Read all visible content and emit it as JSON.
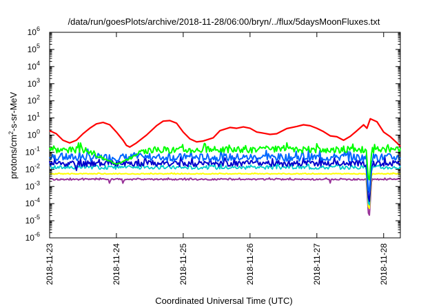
{
  "chart_data": {
    "type": "line",
    "title": "/data/run/goesPlots/archive/2018-11-28/06:00/bryn/../flux/5daysMoonFluxes.txt",
    "xlabel": "Coordinated Universal Time (UTC)",
    "ylabel": "protons/cm2-s-sr-MeV",
    "ylabel_main": "protons/cm",
    "ylabel_sup": "2",
    "ylabel_rest": "-s-sr-MeV",
    "yscale": "log",
    "ylim": [
      1e-06,
      1000000.0
    ],
    "xlim": [
      0,
      5.25
    ],
    "x_unit": "days since 2018-11-23 00:00 UTC",
    "grid": false,
    "legend": "none",
    "x_ticks": [
      {
        "x": 0,
        "label": "2018-11-23"
      },
      {
        "x": 1,
        "label": "2018-11-24"
      },
      {
        "x": 2,
        "label": "2018-11-25"
      },
      {
        "x": 3,
        "label": "2018-11-26"
      },
      {
        "x": 4,
        "label": "2018-11-27"
      },
      {
        "x": 5,
        "label": "2018-11-28"
      }
    ],
    "y_ticks": [
      {
        "v": 1e-06,
        "base": "10",
        "exp": "-6"
      },
      {
        "v": 1e-05,
        "base": "10",
        "exp": "-5"
      },
      {
        "v": 0.0001,
        "base": "10",
        "exp": "-4"
      },
      {
        "v": 0.001,
        "base": "10",
        "exp": "-3"
      },
      {
        "v": 0.01,
        "base": "10",
        "exp": "-2"
      },
      {
        "v": 0.1,
        "base": "10",
        "exp": "-1"
      },
      {
        "v": 1,
        "base": "10",
        "exp": "0"
      },
      {
        "v": 10,
        "base": "10",
        "exp": "1"
      },
      {
        "v": 100,
        "base": "10",
        "exp": "2"
      },
      {
        "v": 1000,
        "base": "10",
        "exp": "3"
      },
      {
        "v": 10000,
        "base": "10",
        "exp": "4"
      },
      {
        "v": 100000,
        "base": "10",
        "exp": "5"
      },
      {
        "v": 1000000,
        "base": "10",
        "exp": "6"
      }
    ],
    "series": [
      {
        "name": "red",
        "color": "#ff0000",
        "width": 2.2,
        "points": [
          [
            0,
            1.8
          ],
          [
            0.1,
            1.2
          ],
          [
            0.2,
            0.5
          ],
          [
            0.3,
            0.35
          ],
          [
            0.4,
            0.5
          ],
          [
            0.5,
            1.2
          ],
          [
            0.6,
            2.5
          ],
          [
            0.7,
            4.5
          ],
          [
            0.8,
            5.5
          ],
          [
            0.9,
            4
          ],
          [
            1.0,
            1.5
          ],
          [
            1.1,
            0.5
          ],
          [
            1.15,
            0.25
          ],
          [
            1.2,
            0.2
          ],
          [
            1.3,
            0.35
          ],
          [
            1.45,
            1
          ],
          [
            1.6,
            3.5
          ],
          [
            1.7,
            6.5
          ],
          [
            1.8,
            7
          ],
          [
            1.9,
            5
          ],
          [
            2.0,
            1.5
          ],
          [
            2.1,
            0.6
          ],
          [
            2.2,
            0.4
          ],
          [
            2.3,
            0.45
          ],
          [
            2.45,
            0.7
          ],
          [
            2.55,
            1.8
          ],
          [
            2.7,
            2.8
          ],
          [
            2.8,
            2.5
          ],
          [
            2.9,
            3
          ],
          [
            3.0,
            2.5
          ],
          [
            3.1,
            1.5
          ],
          [
            3.2,
            1.3
          ],
          [
            3.3,
            1.1
          ],
          [
            3.4,
            1.2
          ],
          [
            3.55,
            2.4
          ],
          [
            3.7,
            3.2
          ],
          [
            3.8,
            4
          ],
          [
            3.9,
            3.5
          ],
          [
            4.0,
            2.5
          ],
          [
            4.1,
            1.6
          ],
          [
            4.2,
            0.9
          ],
          [
            4.3,
            0.8
          ],
          [
            4.4,
            0.5
          ],
          [
            4.5,
            0.85
          ],
          [
            4.6,
            1.8
          ],
          [
            4.7,
            4
          ],
          [
            4.75,
            2.5
          ],
          [
            4.8,
            9
          ],
          [
            4.9,
            6
          ],
          [
            5.0,
            1.5
          ],
          [
            5.1,
            0.8
          ],
          [
            5.2,
            0.35
          ],
          [
            5.25,
            0.22
          ]
        ]
      },
      {
        "name": "green",
        "color": "#00ff00",
        "width": 2,
        "base": 0.14,
        "amp": 0.38,
        "seed": 3,
        "dips": [
          [
            1.0,
            0.5,
            0.02
          ],
          [
            4.78,
            0.04,
            0.001
          ]
        ]
      },
      {
        "name": "blue-upper",
        "color": "#0066ff",
        "width": 2,
        "base": 0.05,
        "amp": 0.45,
        "seed": 7,
        "dips": [
          [
            4.78,
            0.04,
            0.0002
          ]
        ]
      },
      {
        "name": "blue-dark",
        "color": "#0000cc",
        "width": 2,
        "base": 0.022,
        "amp": 0.35,
        "seed": 11,
        "dips": [
          [
            0.4,
            0.02,
            0.008
          ],
          [
            4.78,
            0.04,
            5e-05
          ]
        ]
      },
      {
        "name": "cyan",
        "color": "#00cccc",
        "width": 1.8,
        "base": 0.013,
        "amp": 0.22,
        "seed": 17,
        "dips": [
          [
            4.78,
            0.04,
            3e-05
          ]
        ]
      },
      {
        "name": "yellow",
        "color": "#ffff00",
        "width": 2,
        "base": 0.0055,
        "amp": 0.05,
        "seed": 23,
        "dips": [
          [
            4.78,
            0.04,
            2e-05
          ]
        ]
      },
      {
        "name": "purple",
        "color": "#993399",
        "width": 2,
        "base": 0.0026,
        "amp": 0.08,
        "seed": 29,
        "dips": [
          [
            0.9,
            0.015,
            0.0013
          ],
          [
            1.1,
            0.015,
            0.0013
          ],
          [
            4.2,
            0.015,
            0.0016
          ],
          [
            4.78,
            0.04,
            8e-06
          ]
        ]
      }
    ]
  }
}
